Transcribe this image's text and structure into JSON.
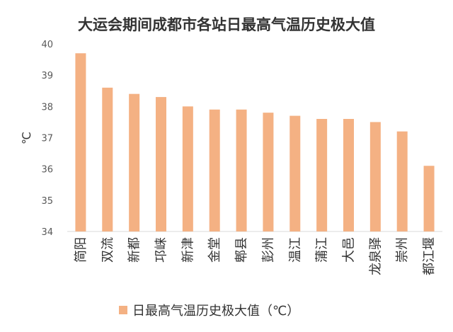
{
  "chart_data": {
    "type": "bar",
    "title": "大运会期间成都市各站日最高气温历史极大值",
    "ylabel": "℃",
    "xlabel": "",
    "ylim": [
      34,
      40
    ],
    "yticks": [
      34,
      35,
      36,
      37,
      38,
      39,
      40
    ],
    "categories": [
      "简阳",
      "双流",
      "新都",
      "邛崃",
      "新津",
      "金堂",
      "郫县",
      "彭州",
      "温江",
      "蒲江",
      "大邑",
      "龙泉驿",
      "崇州",
      "都江堰"
    ],
    "series": [
      {
        "name": "日最高气温历史极大值（℃）",
        "values": [
          39.7,
          38.6,
          38.4,
          38.3,
          38.0,
          37.9,
          37.9,
          37.8,
          37.7,
          37.6,
          37.6,
          37.5,
          37.2,
          36.1
        ]
      }
    ],
    "grid": false,
    "legend": "bottom",
    "colors": {
      "bar": "#F4B183",
      "axis": "#D9D9D9"
    }
  }
}
